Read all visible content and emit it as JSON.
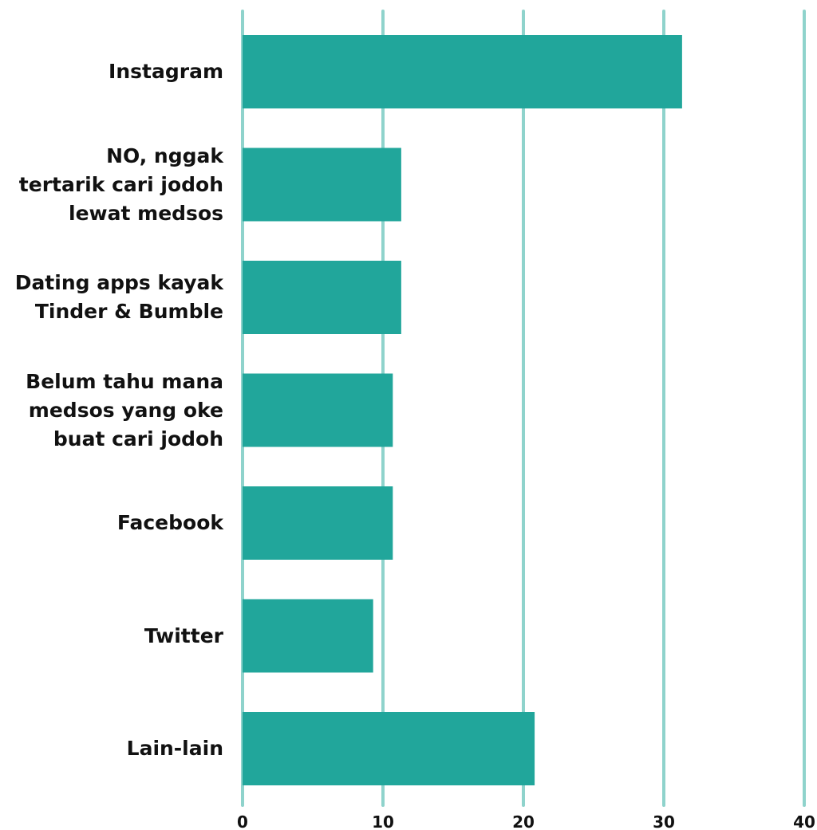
{
  "chart_data": {
    "type": "bar",
    "orientation": "horizontal",
    "categories": [
      "Instagram",
      "NO, nggak\ntertarik cari jodoh\nlewat medsos",
      "Dating apps kayak\nTinder & Bumble",
      "Belum tahu mana\nmedsos yang oke\nbuat cari jodoh",
      "Facebook",
      "Twitter",
      "Lain-lain"
    ],
    "values": [
      31.3,
      11.3,
      11.3,
      10.7,
      10.7,
      9.3,
      20.8
    ],
    "color": "#21a69b",
    "grid_color": "#8fd3cc",
    "xlim": [
      0,
      40
    ],
    "xticks": [
      0,
      10,
      20,
      30,
      40
    ],
    "grid": true
  }
}
